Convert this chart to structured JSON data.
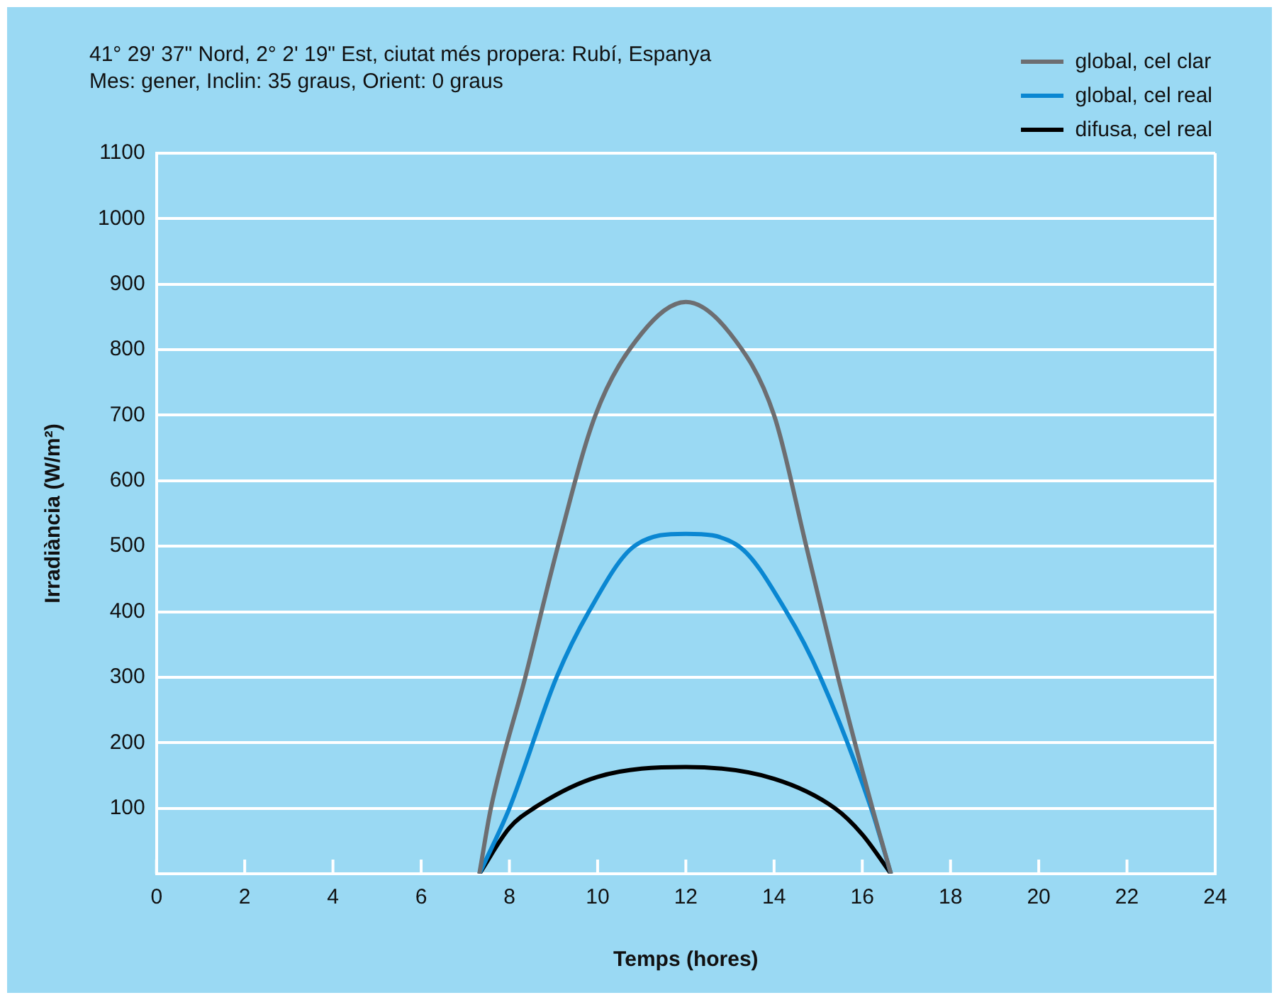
{
  "chart_data": {
    "type": "line",
    "title": "41° 29' 37\" Nord, 2° 2' 19\" Est, ciutat més propera: Rubí, Espanya",
    "subtitle": "Mes: gener, Inclin: 35 graus, Orient: 0 graus",
    "xlabel": "Temps (hores)",
    "ylabel": "Irradiància (W/m²)",
    "xlim": [
      0,
      24
    ],
    "xticks": [
      0,
      2,
      4,
      6,
      8,
      10,
      12,
      14,
      16,
      18,
      20,
      22,
      24
    ],
    "ylim": [
      0,
      1100
    ],
    "yticks": [
      {
        "value": 0,
        "label": null
      },
      100,
      200,
      300,
      400,
      500,
      600,
      700,
      800,
      900,
      1000,
      1100
    ],
    "grid": "y",
    "legend": "top right",
    "marker": "none",
    "line_style": "solid",
    "series": [
      {
        "name": "global, cel clar",
        "color": "#6d6e71",
        "x": [
          7.32,
          7.58,
          8.36,
          9.1,
          9.95,
          11,
          12,
          13,
          14,
          14.73,
          15.45,
          16.23,
          16.65
        ],
        "values": [
          0,
          100,
          300,
          500,
          700,
          825,
          873,
          825,
          700,
          500,
          300,
          100,
          0
        ]
      },
      {
        "name": "global, cel real",
        "color": "#0a87d2",
        "x": [
          7.32,
          8.0,
          9.07,
          9.8,
          10.83,
          12,
          13.2,
          14.28,
          15.05,
          16.2,
          16.65
        ],
        "values": [
          0,
          100,
          300,
          400,
          500,
          519,
          500,
          400,
          300,
          100,
          0
        ]
      },
      {
        "name": "difusa, cel real",
        "color": "#000000",
        "x": [
          7.32,
          8,
          8.55,
          10,
          12,
          14,
          15.38,
          16,
          16.65
        ],
        "values": [
          0,
          70,
          100,
          148,
          163,
          145,
          100,
          60,
          0
        ]
      }
    ]
  }
}
